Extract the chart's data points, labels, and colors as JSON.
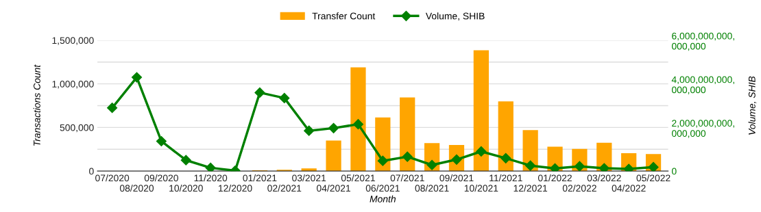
{
  "chart_data": {
    "type": "bar",
    "xlabel": "Month",
    "ylabel": "Transactions Count",
    "y2label": "Volume, SHIB",
    "categories": [
      "07/2020",
      "08/2020",
      "09/2020",
      "10/2020",
      "11/2020",
      "12/2020",
      "01/2021",
      "02/2021",
      "03/2021",
      "04/2021",
      "05/2021",
      "06/2021",
      "07/2021",
      "08/2021",
      "09/2021",
      "10/2021",
      "11/2021",
      "12/2021",
      "01/2022",
      "02/2022",
      "03/2022",
      "04/2022",
      "05/2022"
    ],
    "series": [
      {
        "name": "Transfer Count",
        "color": "#ffa500",
        "values": [
          0,
          0,
          0,
          0,
          0,
          0,
          10000,
          15000,
          30000,
          350000,
          1190000,
          615000,
          845000,
          320000,
          300000,
          1385000,
          800000,
          470000,
          280000,
          255000,
          325000,
          205000,
          195000
        ]
      },
      {
        "name": "Volume, SHIB",
        "type": "line",
        "axis": "y2",
        "color": "#008000",
        "marker": "diamond",
        "values": [
          2900000000000000,
          4300000000000000,
          1370000000000000,
          500000000000000,
          150000000000000,
          20000000000000,
          3600000000000000,
          3350000000000000,
          1850000000000000,
          1970000000000000,
          2150000000000000,
          470000000000000,
          660000000000000,
          280000000000000,
          530000000000000,
          900000000000000,
          590000000000000,
          250000000000000,
          120000000000000,
          220000000000000,
          130000000000000,
          100000000000000,
          180000000000000
        ]
      }
    ],
    "ylim": [
      0,
      1500000
    ],
    "yticks": [
      {
        "value": 0,
        "label": "0"
      },
      {
        "value": 250000,
        "label": null
      },
      {
        "value": 500000,
        "label": "500,000"
      },
      {
        "value": 750000,
        "label": null
      },
      {
        "value": 1000000,
        "label": "1,000,000"
      },
      {
        "value": 1250000,
        "label": null
      },
      {
        "value": 1500000,
        "label": "1,500,000"
      }
    ],
    "y2lim": [
      0,
      6000000000000000
    ],
    "y2ticks": [
      {
        "value": 0,
        "label": "0"
      },
      {
        "value": 2000000000000000,
        "label": "2,000,000,000,000,000"
      },
      {
        "value": 4000000000000000,
        "label": "4,000,000,000,000,000"
      },
      {
        "value": 6000000000000000,
        "label": "6,000,000,000,000,000"
      }
    ],
    "grid": "y",
    "legend": "top"
  }
}
